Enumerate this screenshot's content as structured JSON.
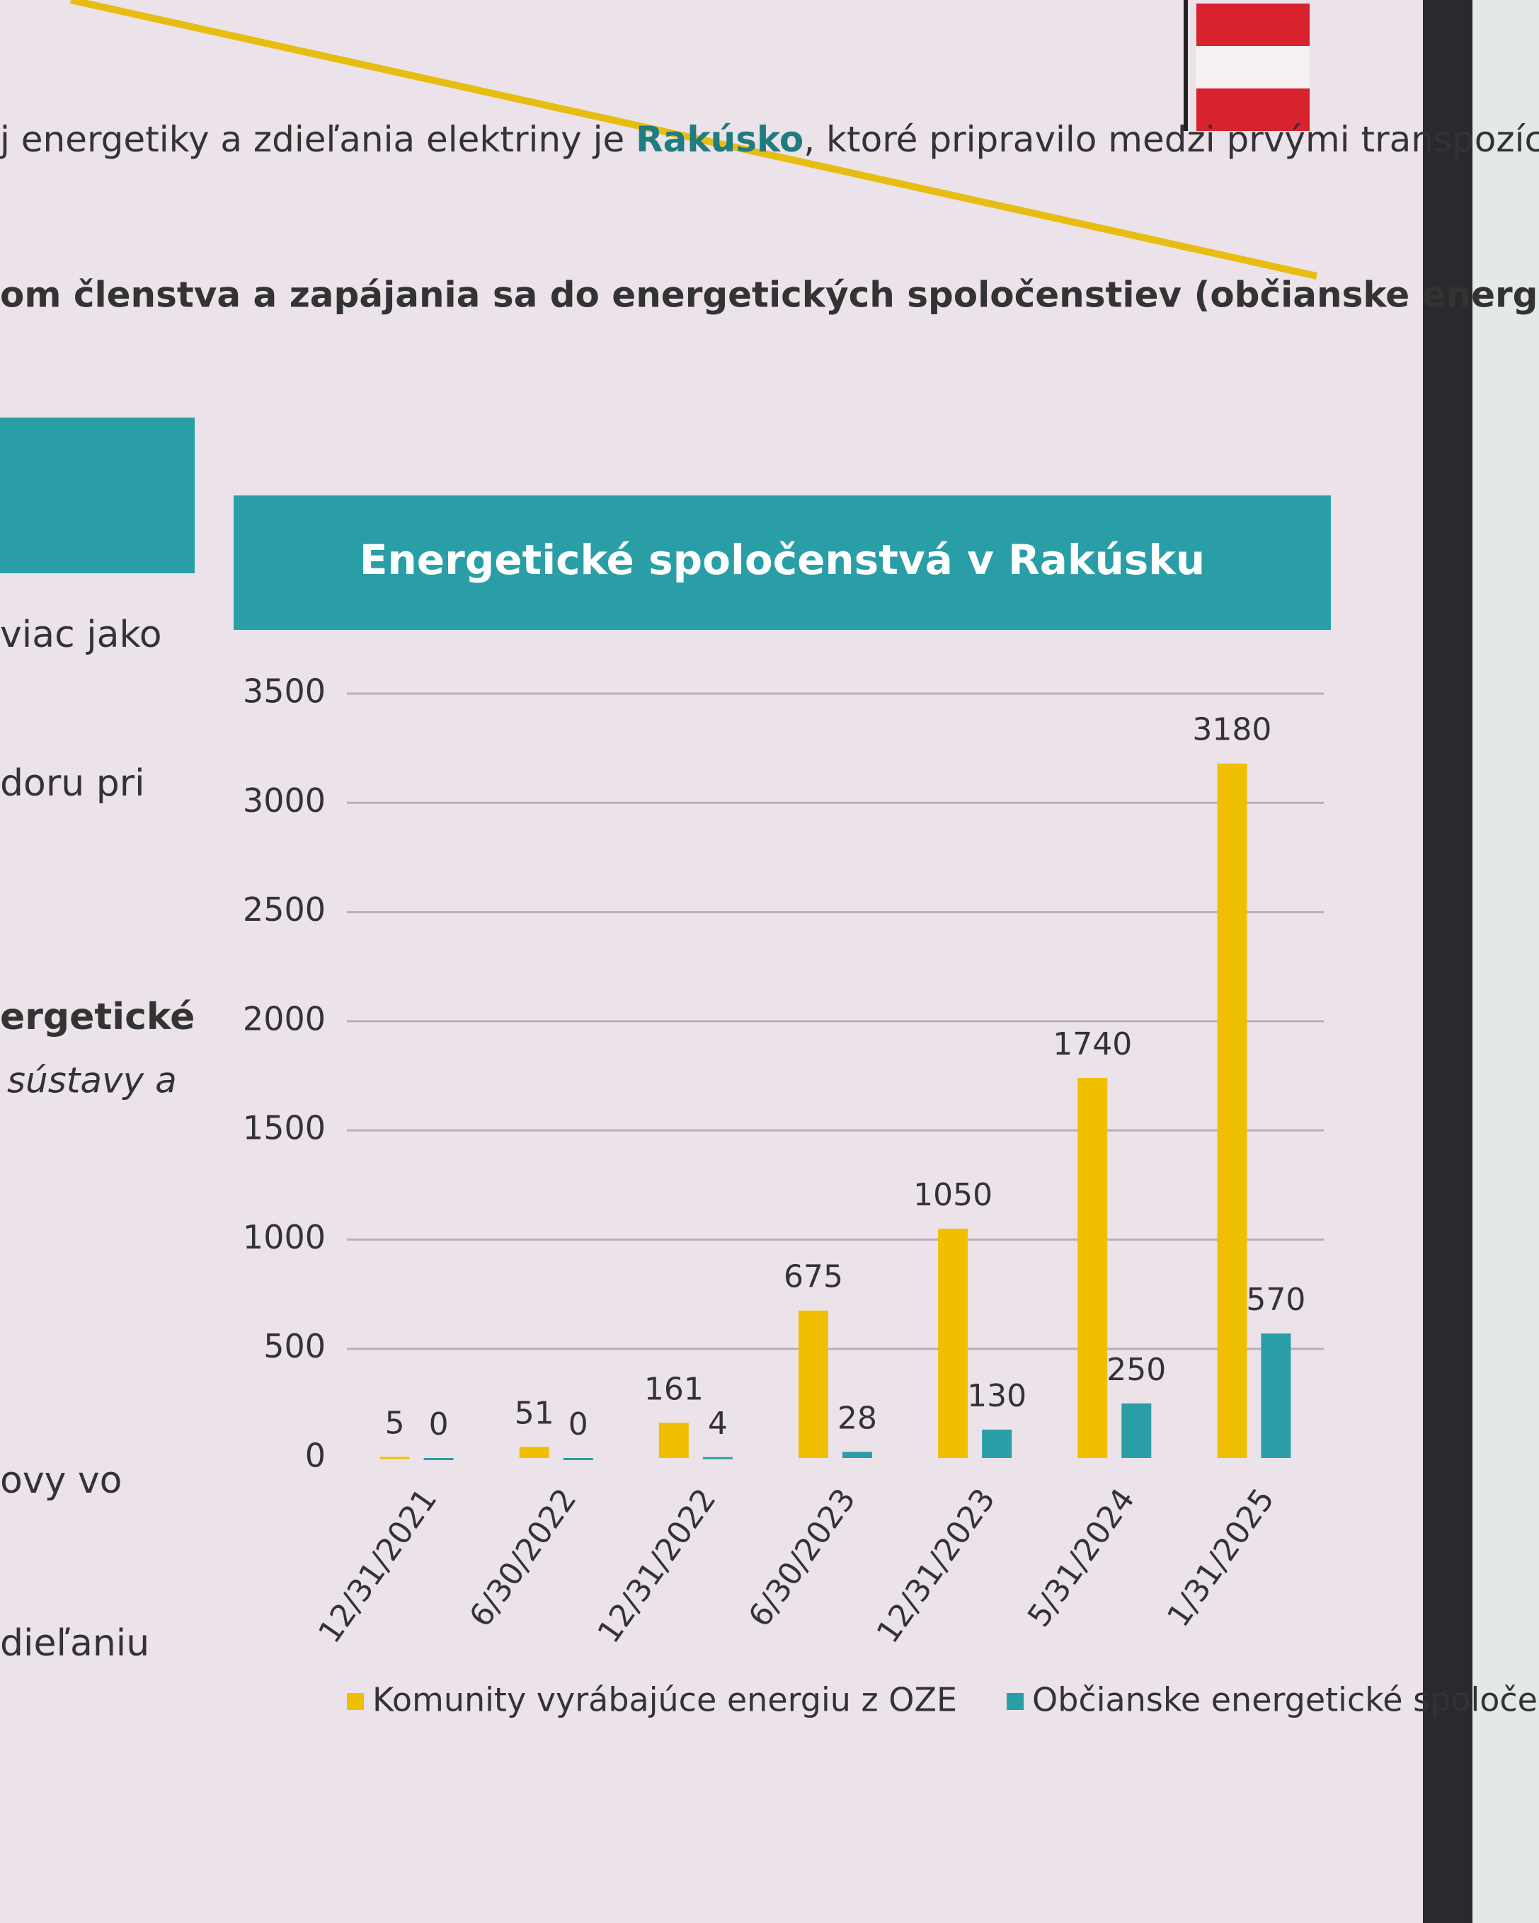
{
  "slide": {
    "intro_line": [
      "j energetiky a zdieľania elektriny je ",
      "Rakúsko",
      ", ktoré pripravilo medzi prvými transpozíciu"
    ],
    "green_line": "om členstva a zapájania sa do energetických spoločenstiev (občianske energetické",
    "left_fragments": [
      "viac jako",
      "doru pri",
      "ergetické",
      "sústavy a",
      "ovy vo",
      "dieľaniu"
    ]
  },
  "chart_data": {
    "type": "bar",
    "title": "Energetické spoločenstvá v Rakúsku",
    "categories": [
      "12/31/2021",
      "6/30/2022",
      "12/31/2022",
      "6/30/2023",
      "12/31/2023",
      "5/31/2024",
      "1/31/2025"
    ],
    "series": [
      {
        "name": "Komunity vyrábajúce energiu z OZE",
        "color": "#f0c000",
        "values": [
          5,
          51,
          161,
          675,
          1050,
          1740,
          3180
        ]
      },
      {
        "name": "Občianske energetické spoločenstvá",
        "color": "#2a9ea6",
        "values": [
          0,
          0,
          4,
          28,
          130,
          250,
          570
        ]
      }
    ],
    "ylim": [
      0,
      3500
    ],
    "yticks": [
      0,
      500,
      1000,
      1500,
      2000,
      2500,
      3000,
      3500
    ],
    "grid": true,
    "legend": "bottom"
  }
}
